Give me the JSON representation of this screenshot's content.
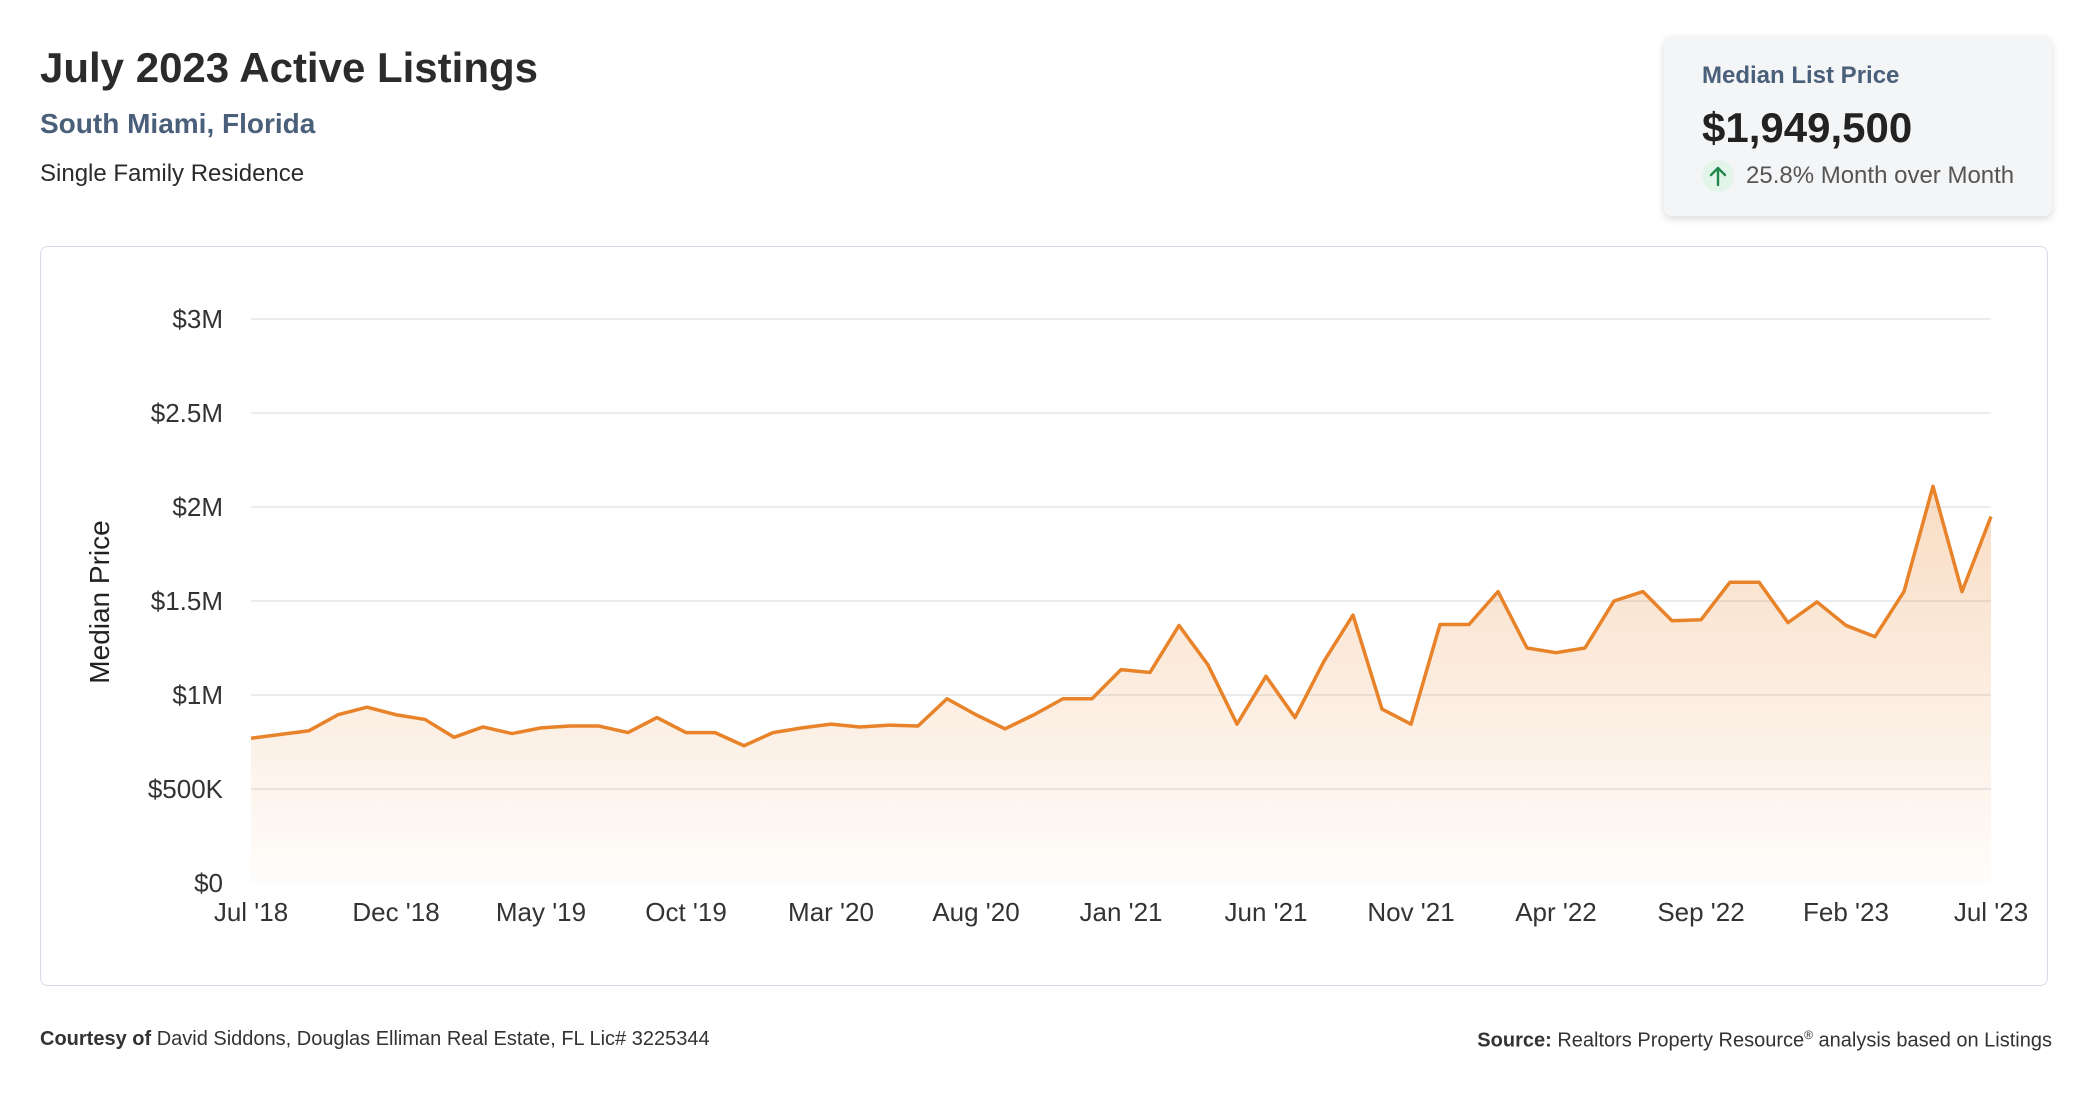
{
  "header": {
    "title": "July 2023 Active Listings",
    "location": "South Miami, Florida",
    "property_type": "Single Family Residence"
  },
  "stat_card": {
    "label": "Median List Price",
    "value": "$1,949,500",
    "change": "25.8% Month over Month",
    "direction_icon": "arrow-up-icon",
    "direction_color": "#1f8a4c"
  },
  "footer": {
    "courtesy_label": "Courtesy of",
    "courtesy_text": "David Siddons, Douglas Elliman Real Estate, FL Lic# 3225344",
    "source_label": "Source:",
    "source_text": "Realtors Property Resource",
    "source_mark": "®",
    "source_suffix": " analysis based on Listings"
  },
  "chart_data": {
    "type": "area",
    "title": "",
    "xlabel": "",
    "ylabel": "Median Price",
    "ylim": [
      0,
      3000000
    ],
    "y_ticks": [
      0,
      500000,
      1000000,
      1500000,
      2000000,
      2500000,
      3000000
    ],
    "y_tick_labels": [
      "$0",
      "$500K",
      "$1M",
      "$1.5M",
      "$2M",
      "$2.5M",
      "$3M"
    ],
    "x_tick_labels": [
      "Jul '18",
      "Dec '18",
      "May '19",
      "Oct '19",
      "Mar '20",
      "Aug '20",
      "Jan '21",
      "Jun '21",
      "Nov '21",
      "Apr '22",
      "Sep '22",
      "Feb '23",
      "Jul '23"
    ],
    "x_tick_step": 5,
    "grid": true,
    "line_color": "#e8832a",
    "fill_color": "#e8832a",
    "x": [
      "2018-07",
      "2018-08",
      "2018-09",
      "2018-10",
      "2018-11",
      "2018-12",
      "2019-01",
      "2019-02",
      "2019-03",
      "2019-04",
      "2019-05",
      "2019-06",
      "2019-07",
      "2019-08",
      "2019-09",
      "2019-10",
      "2019-11",
      "2019-12",
      "2020-01",
      "2020-02",
      "2020-03",
      "2020-04",
      "2020-05",
      "2020-06",
      "2020-07",
      "2020-08",
      "2020-09",
      "2020-10",
      "2020-11",
      "2020-12",
      "2021-01",
      "2021-02",
      "2021-03",
      "2021-04",
      "2021-05",
      "2021-06",
      "2021-07",
      "2021-08",
      "2021-09",
      "2021-10",
      "2021-11",
      "2021-12",
      "2022-01",
      "2022-02",
      "2022-03",
      "2022-04",
      "2022-05",
      "2022-06",
      "2022-07",
      "2022-08",
      "2022-09",
      "2022-10",
      "2022-11",
      "2022-12",
      "2023-01",
      "2023-02",
      "2023-03",
      "2023-04",
      "2023-05",
      "2023-06",
      "2023-07"
    ],
    "values": [
      770000,
      790000,
      810000,
      895000,
      935000,
      895000,
      870000,
      775000,
      830000,
      795000,
      825000,
      835000,
      835000,
      800000,
      880000,
      800000,
      800000,
      730000,
      800000,
      825000,
      845000,
      830000,
      840000,
      835000,
      980000,
      895000,
      820000,
      895000,
      980000,
      980000,
      1135000,
      1120000,
      1370000,
      1160000,
      845000,
      1100000,
      880000,
      1180000,
      1425000,
      925000,
      845000,
      1375000,
      1375000,
      1550000,
      1250000,
      1225000,
      1250000,
      1500000,
      1550000,
      1395000,
      1400000,
      1600000,
      1600000,
      1385000,
      1495000,
      1370000,
      1310000,
      1550000,
      2110000,
      1550000,
      1949500
    ]
  }
}
